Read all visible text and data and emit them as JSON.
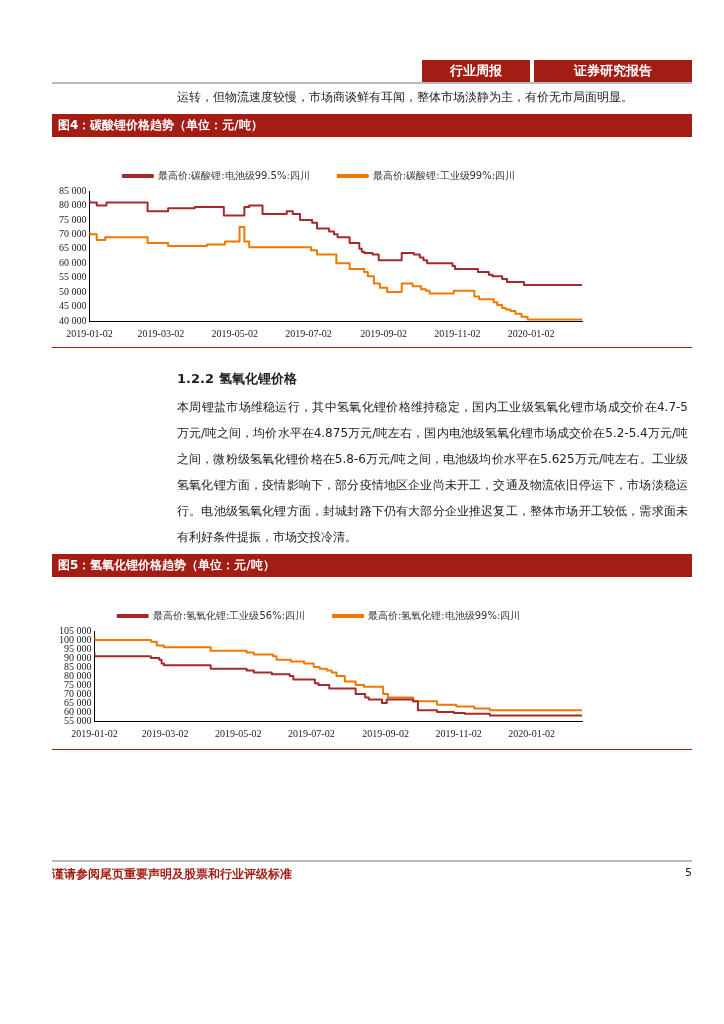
{
  "chart_data": [
    {
      "type": "step",
      "title": "图4：碳酸锂价格趋势（单位：元/吨）",
      "annotations": [
        "行业周报",
        "证券研究报告",
        "运转，但物流速度较慢，市场商谈鲜有耳闻，整体市场淡静为主，有价无市局面明显。"
      ],
      "legend": "top",
      "xlim": [
        "2019-01-02",
        "2020-02-13"
      ],
      "xticks": [
        "2019-01-02",
        "2019-03-02",
        "2019-05-02",
        "2019-07-02",
        "2019-09-02",
        "2019-11-02",
        "2020-01-02"
      ],
      "ylim": [
        40000,
        85000
      ],
      "yticks": [
        {
          "value": 40000,
          "label": "40 000"
        },
        {
          "value": 45000,
          "label": "45 000"
        },
        {
          "value": 50000,
          "label": "50 000"
        },
        {
          "value": 55000,
          "label": "55 000"
        },
        {
          "value": 60000,
          "label": "60 000"
        },
        {
          "value": 65000,
          "label": "65 000"
        },
        {
          "value": 70000,
          "label": "70 000"
        },
        {
          "value": 75000,
          "label": "75 000"
        },
        {
          "value": 80000,
          "label": "80 000"
        },
        {
          "value": 85000,
          "label": "85 000"
        }
      ],
      "series": [
        {
          "name": "最高价:碳酸锂:电池级99.5%:四川",
          "color": "#a52a2a",
          "x": [
            "2019-01-02",
            "2019-01-08",
            "2019-01-16",
            "2019-02-19",
            "2019-03-08",
            "2019-03-30",
            "2019-04-23",
            "2019-05-10",
            "2019-05-14",
            "2019-05-25",
            "2019-06-14",
            "2019-06-19",
            "2019-06-25",
            "2019-07-05",
            "2019-07-09",
            "2019-07-19",
            "2019-07-23",
            "2019-07-26",
            "2019-08-05",
            "2019-08-13",
            "2019-08-15",
            "2019-08-17",
            "2019-08-24",
            "2019-08-29",
            "2019-09-17",
            "2019-09-27",
            "2019-10-02",
            "2019-10-05",
            "2019-10-08",
            "2019-10-29",
            "2019-10-31",
            "2019-11-19",
            "2019-11-28",
            "2019-12-01",
            "2019-12-09",
            "2019-12-13",
            "2019-12-27",
            "2020-01-10",
            "2020-02-13"
          ],
          "values": [
            82000,
            81000,
            80000,
            81000,
            78000,
            79000,
            79500,
            76500,
            79500,
            80000,
            77000,
            78000,
            77000,
            75000,
            74000,
            72000,
            71000,
            70000,
            69000,
            67000,
            65000,
            64000,
            63500,
            63000,
            61000,
            63500,
            63000,
            62000,
            61000,
            60000,
            59000,
            58000,
            57000,
            56000,
            55500,
            54500,
            53500,
            52500,
            52500
          ]
        },
        {
          "name": "最高价:碳酸锂:工业级99%:四川",
          "color": "#f07800",
          "x": [
            "2019-01-02",
            "2019-01-08",
            "2019-01-15",
            "2019-02-19",
            "2019-03-08",
            "2019-04-09",
            "2019-04-24",
            "2019-05-06",
            "2019-05-10",
            "2019-05-14",
            "2019-07-04",
            "2019-07-09",
            "2019-07-25",
            "2019-08-05",
            "2019-08-17",
            "2019-08-20",
            "2019-08-25",
            "2019-08-30",
            "2019-09-05",
            "2019-09-17",
            "2019-09-26",
            "2019-10-03",
            "2019-10-07",
            "2019-10-10",
            "2019-10-30",
            "2019-11-16",
            "2019-11-20",
            "2019-12-02",
            "2019-12-05",
            "2019-12-09",
            "2019-12-12",
            "2019-12-16",
            "2019-12-20",
            "2019-12-25",
            "2019-12-30",
            "2020-01-10",
            "2020-02-13"
          ],
          "values": [
            71000,
            70000,
            68000,
            69000,
            67000,
            66000,
            66500,
            67500,
            72500,
            67500,
            65500,
            64500,
            63000,
            60000,
            58000,
            57000,
            55500,
            53000,
            51500,
            50000,
            53000,
            52000,
            51000,
            50500,
            49500,
            50500,
            48500,
            47500,
            46500,
            45500,
            44500,
            44000,
            43500,
            42500,
            41500,
            40500,
            40500
          ]
        }
      ]
    },
    {
      "type": "step",
      "title": "图5：氢氧化锂价格趋势（单位：元/吨）",
      "annotations": [
        "1.2.2  氢氧化锂价格",
        "本周锂盐市场维稳运行，其中氢氧化锂价格维持稳定，国内工业级氢氧化锂市场成交价在4.7-5万元/吨之间，均价水平在4.875万元/吨左右，国内电池级氢氧化锂市场成交价在5.2-5.4万元/吨之间，微粉级氢氧化锂价格在5.8-6万元/吨之间，电池级均价水平在5.625万元/吨左右。工业级氢氧化锂方面，疫情影响下，部分疫情地区企业尚未开工，交通及物流依旧停运下，市场淡稳运行。电池级氢氧化锂方面，封城封路下仍有大部分企业推迟复工，整体市场开工较低，需求面未有利好条件提振，市场交投冷清。",
        "谨请参阅尾页重要声明及股票和行业评级标准",
        "5"
      ],
      "legend": "top",
      "xlim": [
        "2019-01-02",
        "2020-02-13"
      ],
      "xticks": [
        "2019-01-02",
        "2019-03-02",
        "2019-05-02",
        "2019-07-02",
        "2019-09-02",
        "2019-11-02",
        "2020-01-02"
      ],
      "ylim": [
        55000,
        105000
      ],
      "yticks": [
        {
          "value": 55000,
          "label": "55 000"
        },
        {
          "value": 60000,
          "label": "60 000"
        },
        {
          "value": 65000,
          "label": "65 000"
        },
        {
          "value": 70000,
          "label": "70 000"
        },
        {
          "value": 75000,
          "label": "75 000"
        },
        {
          "value": 80000,
          "label": "80 000"
        },
        {
          "value": 85000,
          "label": "85 000"
        },
        {
          "value": 90000,
          "label": "90 000"
        },
        {
          "value": 95000,
          "label": "95 000"
        },
        {
          "value": 100000,
          "label": "100 000"
        },
        {
          "value": 105000,
          "label": "105 000"
        }
      ],
      "series": [
        {
          "name": "最高价:氢氧化锂:工业级56%:四川",
          "color": "#a52a2a",
          "x": [
            "2019-01-02",
            "2019-02-18",
            "2019-02-25",
            "2019-02-27",
            "2019-03-01",
            "2019-04-09",
            "2019-05-09",
            "2019-05-15",
            "2019-05-30",
            "2019-06-14",
            "2019-06-17",
            "2019-07-05",
            "2019-07-08",
            "2019-07-17",
            "2019-08-08",
            "2019-08-16",
            "2019-08-19",
            "2019-08-30",
            "2019-09-03",
            "2019-09-25",
            "2019-09-29",
            "2019-10-15",
            "2019-10-29",
            "2019-11-07",
            "2019-11-28",
            "2019-12-07",
            "2020-02-13"
          ],
          "values": [
            93000,
            91000,
            90000,
            89000,
            87000,
            86000,
            84000,
            83000,
            82000,
            81000,
            80000,
            78000,
            76000,
            75000,
            73000,
            70000,
            68000,
            67000,
            65000,
            67000,
            66000,
            61000,
            60000,
            59500,
            59000,
            58000,
            58000
          ]
        },
        {
          "name": "最高价:氢氧化锂:电池级99%:四川",
          "color": "#f07800",
          "x": [
            "2019-01-02",
            "2019-02-18",
            "2019-02-23",
            "2019-03-01",
            "2019-04-09",
            "2019-05-09",
            "2019-05-15",
            "2019-05-31",
            "2019-06-03",
            "2019-06-15",
            "2019-06-26",
            "2019-07-04",
            "2019-07-09",
            "2019-07-15",
            "2019-07-19",
            "2019-07-23",
            "2019-07-30",
            "2019-08-08",
            "2019-08-15",
            "2019-08-31",
            "2019-09-04",
            "2019-09-25",
            "2019-10-15",
            "2019-10-31",
            "2019-11-15",
            "2019-11-28",
            "2019-12-06",
            "2020-02-13"
          ],
          "values": [
            102000,
            100000,
            99000,
            97000,
            96000,
            94000,
            93000,
            92000,
            91000,
            89000,
            88000,
            87000,
            85000,
            84000,
            83000,
            82000,
            80000,
            77000,
            75000,
            74000,
            70000,
            68000,
            66000,
            64000,
            63000,
            62000,
            61000,
            61000
          ]
        }
      ]
    }
  ]
}
